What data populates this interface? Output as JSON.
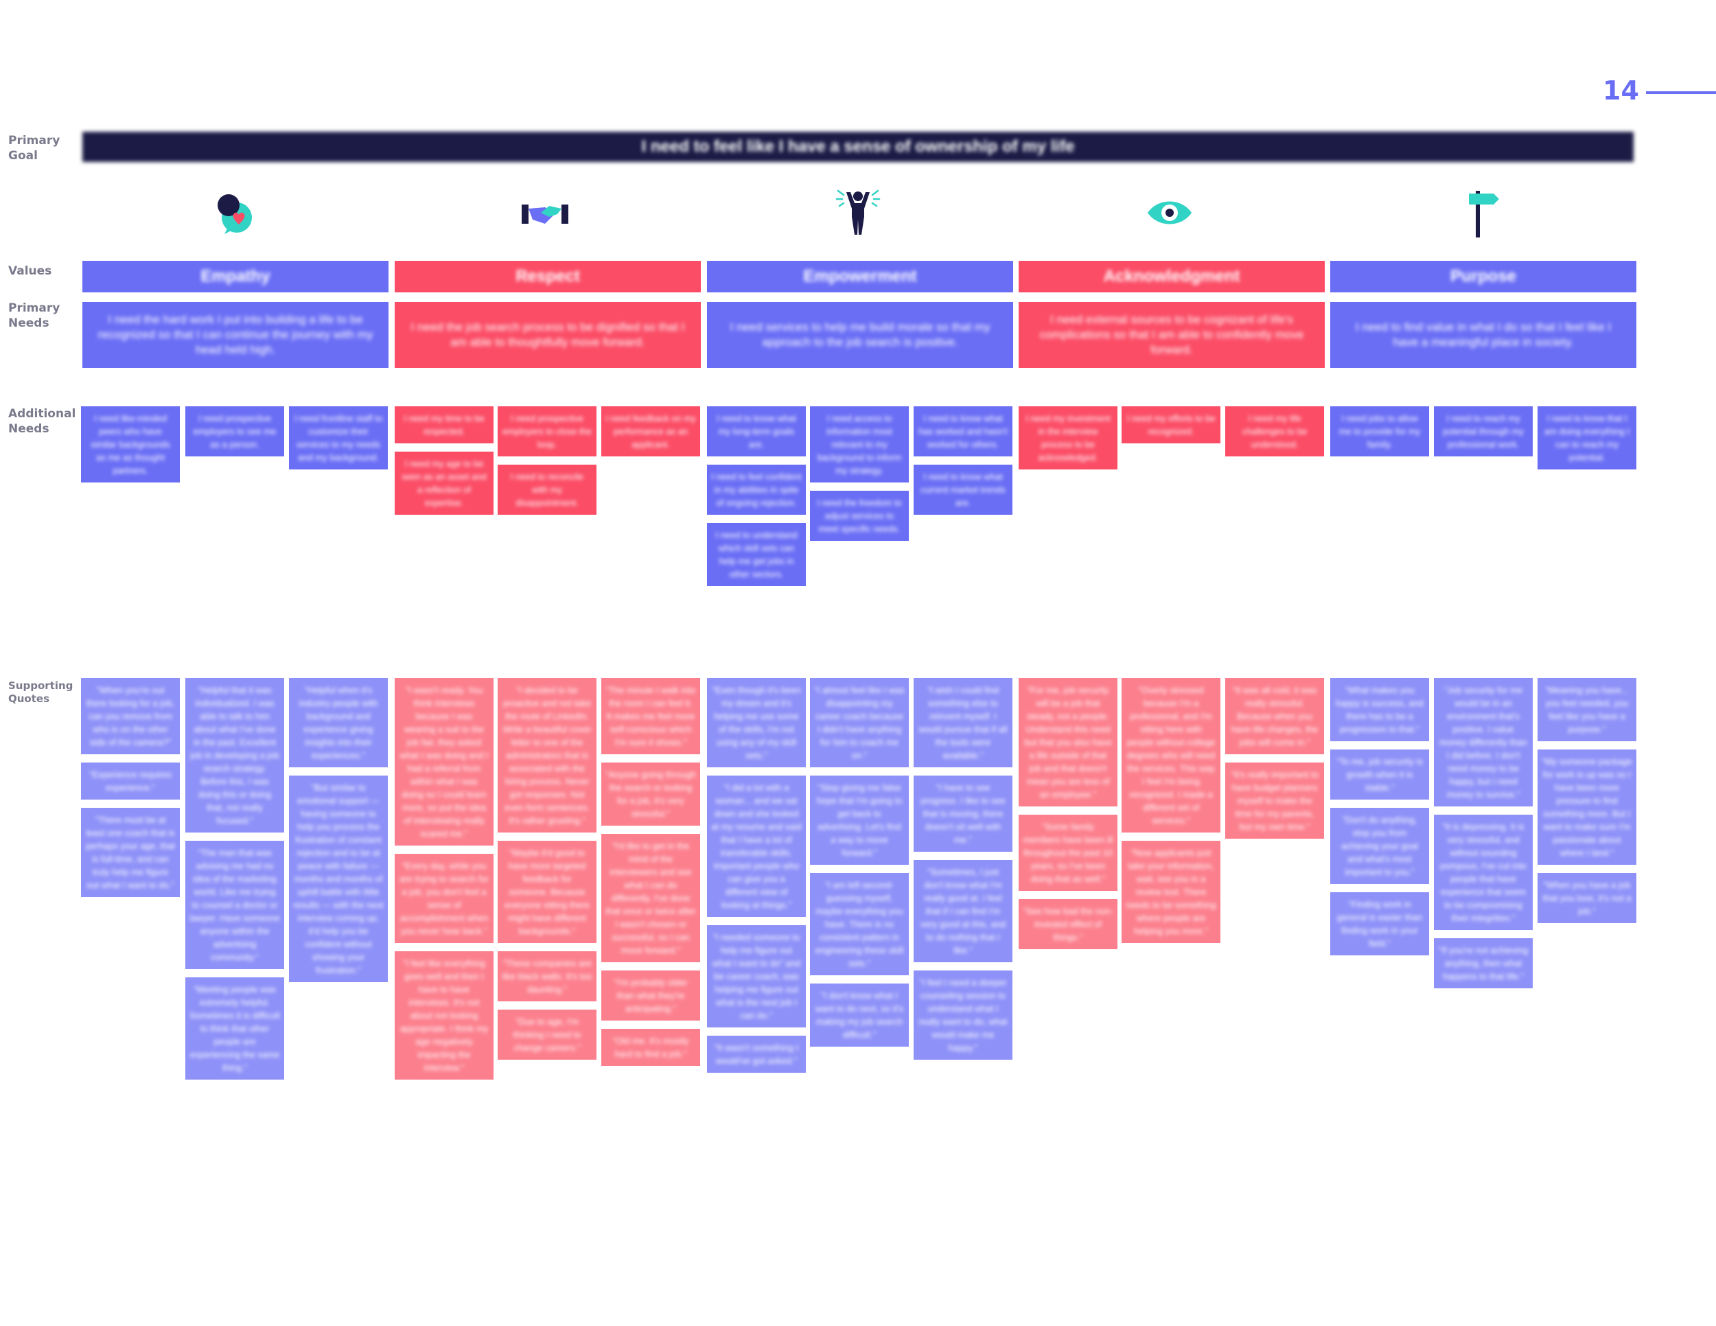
{
  "page": {
    "number": "14"
  },
  "labels": {
    "primary_goal": "Primary\nGoal",
    "values": "Values",
    "primary_needs": "Primary\nNeeds",
    "additional_needs": "Additional\nNeeds",
    "supporting_quotes": "Supporting\nQuotes"
  },
  "goal": "I need to feel like I have a sense of ownership of my life",
  "values": [
    {
      "label": "Empathy",
      "color": "#6a6ef5",
      "icon": "empathy-heart-icon",
      "need": "I need the hard work I put into building a life to be recognized so that I can continue the journey with my head held high."
    },
    {
      "label": "Respect",
      "color": "#fb4d66",
      "icon": "handshake-icon",
      "need": "I need the job search process to be dignified so that I am able to thoughtfully move forward."
    },
    {
      "label": "Empowerment",
      "color": "#6a6ef5",
      "icon": "empowered-person-icon",
      "need": "I need services to help me build morale so that my approach to the job search is positive."
    },
    {
      "label": "Acknowledgment",
      "color": "#fb4d66",
      "icon": "eye-icon",
      "need": "I need external sources to be cognizant of life's complications so that I am able to confidently move forward."
    },
    {
      "label": "Purpose",
      "color": "#6a6ef5",
      "icon": "signpost-icon",
      "need": "I need to find value in what I do so that I feel like I have a meaningful place in society."
    }
  ],
  "additional_needs": [
    [
      [
        "I need like-minded peers who have similar backgrounds as me as thought partners."
      ],
      [
        "I need prospective employers to see me as a person."
      ],
      [
        "I need frontline staff to customize their services to my needs and my background."
      ]
    ],
    [
      [
        "I need my time to be respected.",
        "I need my age to be seen as an asset and a reflection of expertise."
      ],
      [
        "I need prospective employers to close the loop.",
        "I need to reconcile with my disappointment."
      ],
      [
        "I need feedback on my performance as an applicant."
      ]
    ],
    [
      [
        "I need to know what my long-term goals are.",
        "I need to feel confident in my abilities in spite of ongoing rejection.",
        "I need to understand which skill sets can help me get jobs in other sectors."
      ],
      [
        "I need access to information most relevant to my background to inform my strategy.",
        "I need the freedom to adjust services to meet specific needs."
      ],
      [
        "I need to know what has worked and hasn't worked for others.",
        "I need to know what current market trends are."
      ]
    ],
    [
      [
        "I need my investment in the interview process to be acknowledged."
      ],
      [
        "I need my efforts to be recognized."
      ],
      [
        "I need my life challenges to be understood."
      ]
    ],
    [
      [
        "I need jobs to allow me to provide for my family."
      ],
      [
        "I need to reach my potential through my professional work."
      ],
      [
        "I need to know that I am doing everything I can to reach my potential."
      ]
    ]
  ],
  "supporting_quotes": [
    [
      [
        "\"When you're out there looking for a job, can you remove from who is on the other side of the camera?\"",
        "\"Experience requires experience.\"",
        "\"There must be at least one coach that is perhaps your age, that is full-time, and can truly help me figure out what I want to do.\""
      ],
      [
        "\"Helpful that it was individualized. I was able to talk to him about what I've done in the past. Excellent job in developing a job search strategy. Before this, I was doing this or doing that, not really focused.\"",
        "\"The man that was advising me had no idea of the marketing world. Like me trying to counsel a doctor or lawyer. Have someone anyone within the advertising community.\"",
        "\"Meeting people was extremely helpful. Sometimes it is difficult to think that other people are experiencing the same thing.\""
      ],
      [
        "\"Helpful when it's industry people with background and experience giving insights into their experiences.\"",
        "\"But similar to emotional support — having someone to help you process the frustration of constant rejection and to be at peace with failure — months and months of uphill battle with little results — with the next interview coming up, it'd help you be confident without showing your frustration.\""
      ]
    ],
    [
      [
        "\"I wasn't ready. You think interviews because I was wearing a suit to the job fair, they asked what I was doing and I had a referral from within what I was doing so I could learn more, so put the idea of interviewing really scared me.\"",
        "\"Every day, while you are trying to search for a job, you don't feel a sense of accomplishment when you never hear back.\"",
        "\"I feel like everything goes well and then I have to have interviews. It's not about not looking appropriate. I think my age negatively impacting the interview.\""
      ],
      [
        "\"I decided to be proactive and not take the route of LinkedIn. Write a beautiful cover letter to one of the administrators that is associated with the hiring process. Never got responses. Not even form sentences. It's rather grueling.\"",
        "\"Maybe it'd good to have more targeted feedback for someone. Because everyone sitting there might have different backgrounds.\"",
        "\"These companies are like black walls. It's too daunting.\"",
        "\"Due to age, I'm thinking I need to change careers.\""
      ],
      [
        "\"The minute I walk into the room I can feel it. It makes me feel more self-conscious which I'm sure it shows.\"",
        "\"Anyone going through the search or looking for a job, it's very stressful.\"",
        "\"I'd like to get in the mind of the interviewers and see what I can do differently. I've done that once or twice after I wasn't chosen or successful, so I can move forward.\"",
        "\"I'm probably older than what they're anticipating.\"",
        "\"Old me. It's mostly hard to find a job.\""
      ]
    ],
    [
      [
        "\"Even though it's been my dream and it's helping me use some of the skills, I'm not using any of my skill sets.\"",
        "\"I did a lot with a woman... and we sat down and she looked at my resume and said that I have a lot of transferable skills. Important people who can give you a different view of looking at things.\"",
        "\"I needed someone to help me figure out what I want to do\" and be career coach, was helping me figure out what is the next job I can do.\"",
        "\"It wasn't something I would've got asked.\""
      ],
      [
        "\"I almost feel like I was disappointing my career coach because I didn't have anything for him to coach me on.\"",
        "\"Stop giving me false hope that I'm going to get back to advertising. Let's find a way to move forward.\"",
        "\"I am left second-guessing myself, maybe everything you have. There is no consistent pattern in engineering these skill sets.\"",
        "\"I don't know what I want to do next, so it's making my job search difficult.\""
      ],
      [
        "\"I wish I could find something else to reinvent myself. I would pursue that if all the tools were available.\"",
        "\"I have to see progress. I like to see that is moving, there doesn't sit well with me.\"",
        "\"Sometimes, I just don't know what I'm really good at. I feel that if I can find I'm very good at this, and to do nothing that I like.\"",
        "\"I feel I need a deeper counseling session to understand what I really want to do, what would make me happy.\""
      ]
    ],
    [
      [
        "\"For me, job security will be a job that steady, not a people. Understand this need but that you also have a life outside of that job and that doesn't mean you are less of an employee.\"",
        "\"Some family members have been ill throughout the past 10 years, so I've been doing that as well.\"",
        "\"See how bad the non-invested effect of things.\""
      ],
      [
        "\"Overly stressed because I'm a professional, and I'm sitting here with people without college degrees who will need the services. This way I feel I'm being recognized. I made a different set of services.\"",
        "\"Now applicants just take your information, wait, see you in a review tool. There needs to be something where people are helping you more.\""
      ],
      [
        "\"It was all cold, it was really stressful. Because when you have life changes, the jobs will come in.\"",
        "\"It's really important to have budget planners myself to make the time for my parents, but my own time.\""
      ]
    ],
    [
      [
        "\"What makes you happy is success, and there has to be a progression to that.\"",
        "\"To me, job security is growth when it is stable.\"",
        "\"Don't do anything, stop you from achieving your goal and what's most important to you.\"",
        "\"Finding work in general is easier than finding work in your field.\""
      ],
      [
        "\"Job security for me would be in an environment that's positive. I value money differently than I did before. I don't need money to be happy, but I need money to survive.\"",
        "\"It is depressing. It is very stressful, and without sounding pompous, I've cut into people that have experience that seem to be compromising their integrities.\"",
        "\"If you're not achieving anything, then what happens to that life.\""
      ],
      [
        "\"Meaning you have... you feel needed, you feel like you have a purpose.\"",
        "\"My someone package for work is up was so I have been more pressure to find something more. But I want to make sure I'm passionate about where I land.\"",
        "\"When you have a job that you love, it's not a job.\""
      ]
    ]
  ]
}
